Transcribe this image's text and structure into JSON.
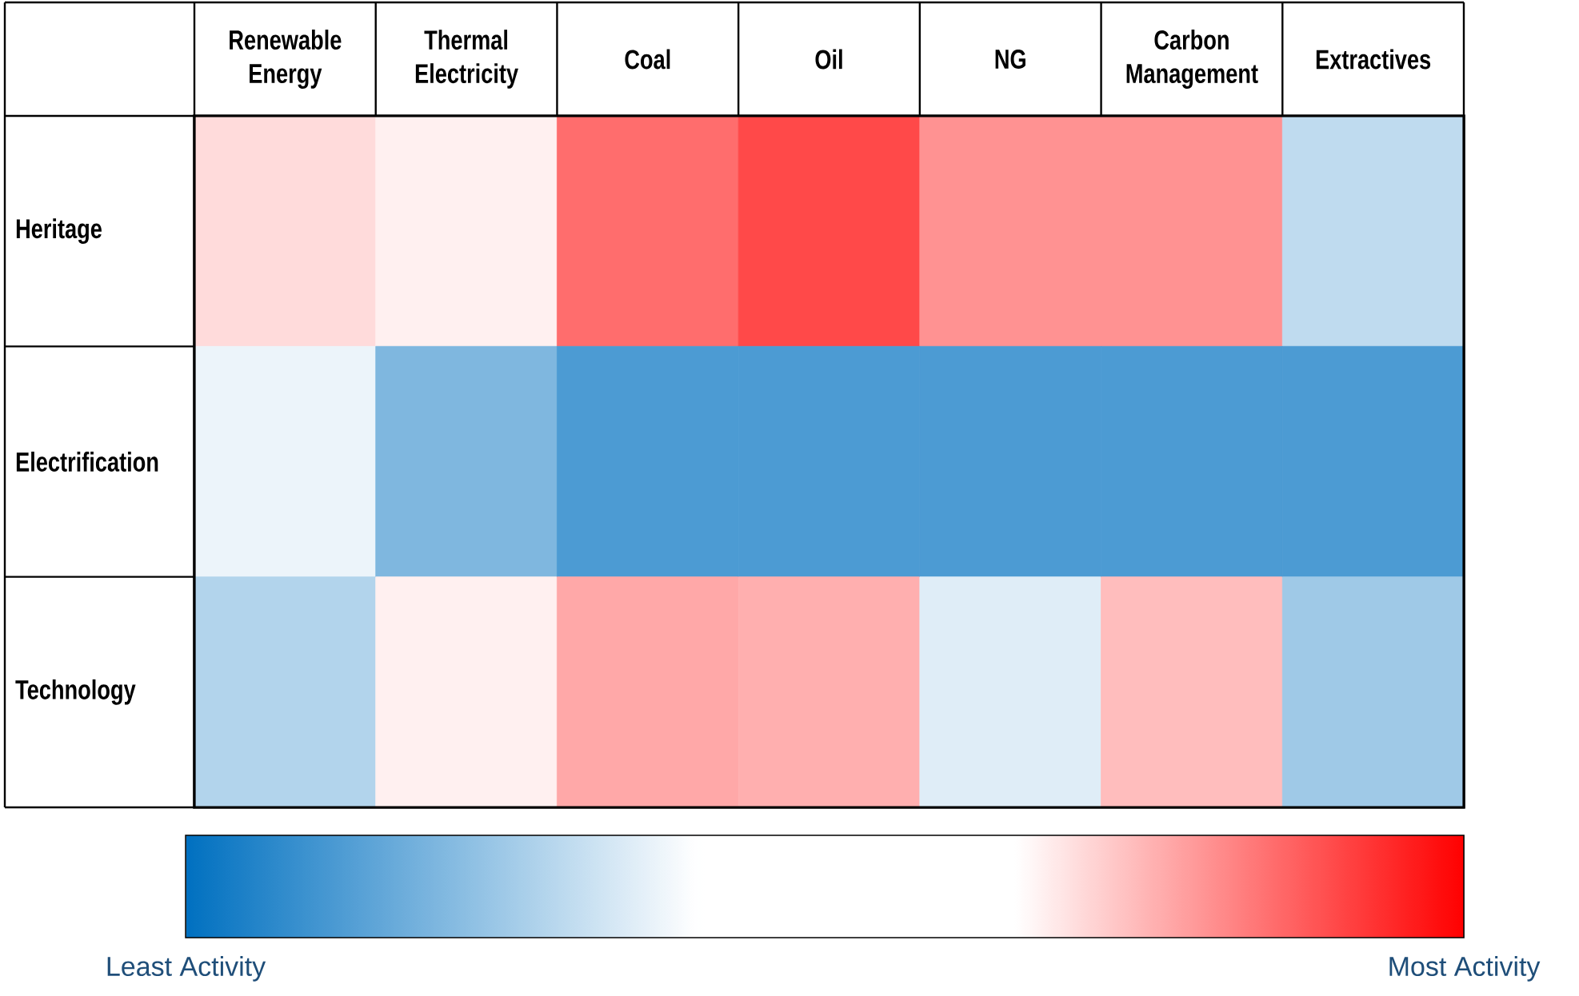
{
  "chart_data": {
    "type": "heatmap",
    "categories": [
      "Renewable Energy",
      "Thermal Electricity",
      "Coal",
      "Oil",
      "NG",
      "Carbon Management",
      "Extractives"
    ],
    "y_categories": [
      "Heritage",
      "Electrification",
      "Technology"
    ],
    "cells": [
      [
        0.7,
        0.67,
        0.85,
        0.9,
        0.8,
        0.8,
        0.3
      ],
      [
        0.37,
        0.2,
        0.12,
        0.12,
        0.12,
        0.12,
        0.12
      ],
      [
        0.28,
        0.67,
        0.77,
        0.76,
        0.35,
        0.74,
        0.25
      ]
    ],
    "clim": [
      0,
      1
    ],
    "cticks": [
      {
        "value": 0,
        "label": "Least Activity"
      },
      {
        "value": 1,
        "label": "Most Activity"
      }
    ]
  }
}
